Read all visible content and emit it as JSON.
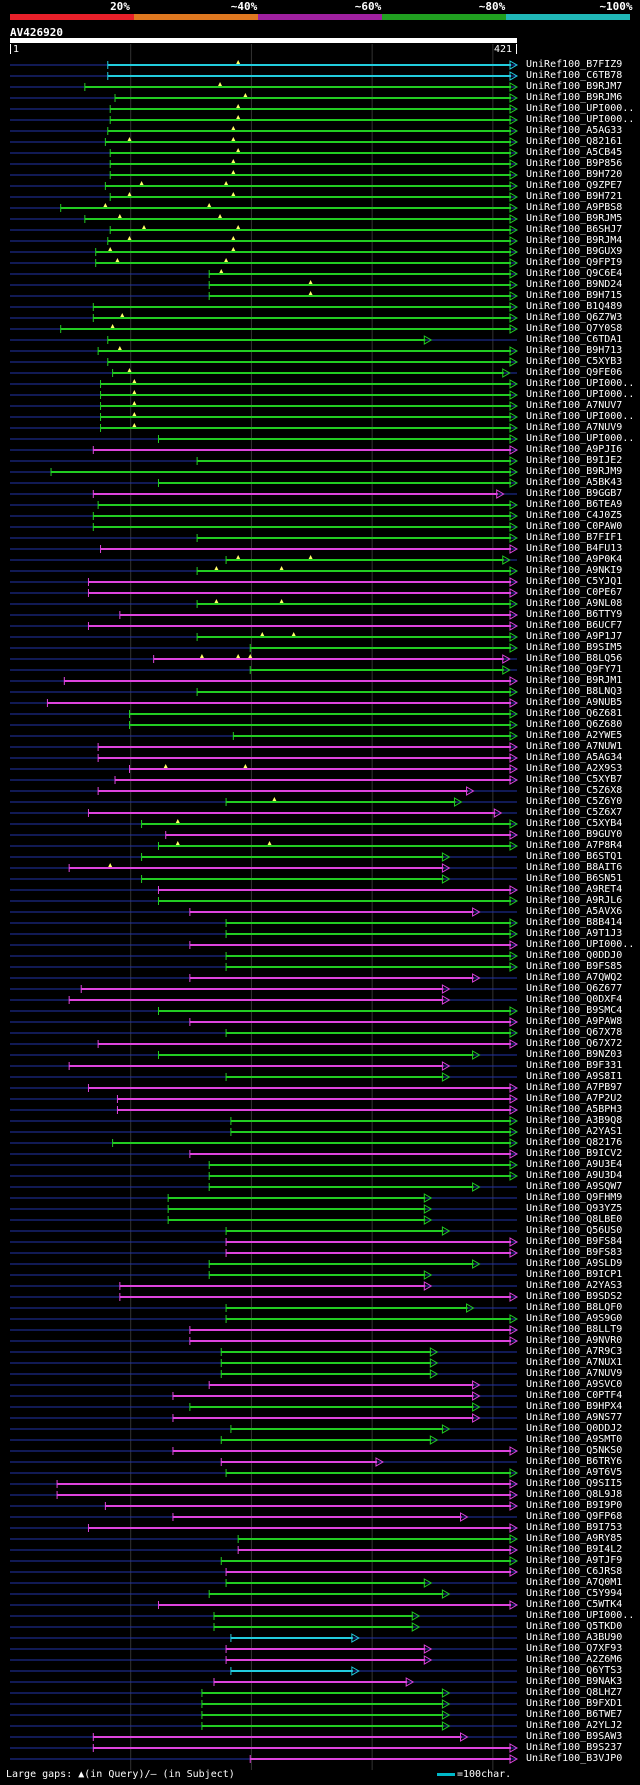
{
  "legend": {
    "labels": [
      "20%",
      "~40%",
      "~60%",
      "~80%",
      "~100%"
    ],
    "colors": [
      "#e8202a",
      "#e07820",
      "#a020a0",
      "#20a020",
      "#20b8b8"
    ]
  },
  "query": {
    "id": "AV426920",
    "start": "1",
    "end": "421",
    "length": 421
  },
  "hits": [
    {
      "id": "UniRef100_B7FIZ9",
      "s": 82,
      "e": 421,
      "c": "cyan",
      "m": [
        190
      ]
    },
    {
      "id": "UniRef100_C6TB78",
      "s": 82,
      "e": 421,
      "c": "cyan",
      "m": []
    },
    {
      "id": "UniRef100_B9RJM7",
      "s": 63,
      "e": 421,
      "c": "green",
      "m": [
        175
      ]
    },
    {
      "id": "UniRef100_B9RJM6",
      "s": 88,
      "e": 421,
      "c": "green",
      "m": [
        196
      ]
    },
    {
      "id": "UniRef100_UPI000..",
      "s": 84,
      "e": 421,
      "c": "green",
      "m": [
        190
      ]
    },
    {
      "id": "UniRef100_UPI000..",
      "s": 84,
      "e": 421,
      "c": "green",
      "m": [
        190
      ]
    },
    {
      "id": "UniRef100_A5AG33",
      "s": 82,
      "e": 421,
      "c": "green",
      "m": [
        186
      ]
    },
    {
      "id": "UniRef100_Q82161",
      "s": 80,
      "e": 421,
      "c": "green",
      "m": [
        100,
        186
      ]
    },
    {
      "id": "UniRef100_A5CB45",
      "s": 84,
      "e": 421,
      "c": "green",
      "m": [
        190
      ]
    },
    {
      "id": "UniRef100_B9P856",
      "s": 84,
      "e": 421,
      "c": "green",
      "m": [
        186
      ]
    },
    {
      "id": "UniRef100_B9H720",
      "s": 84,
      "e": 421,
      "c": "green",
      "m": [
        186
      ]
    },
    {
      "id": "UniRef100_Q9ZPE7",
      "s": 80,
      "e": 421,
      "c": "green",
      "m": [
        110,
        180
      ]
    },
    {
      "id": "UniRef100_B9H721",
      "s": 84,
      "e": 421,
      "c": "green",
      "m": [
        100,
        186
      ]
    },
    {
      "id": "UniRef100_A9PBS8",
      "s": 43,
      "e": 421,
      "c": "green",
      "m": [
        80,
        166
      ]
    },
    {
      "id": "UniRef100_B9RJM5",
      "s": 63,
      "e": 421,
      "c": "green",
      "m": [
        92,
        175
      ]
    },
    {
      "id": "UniRef100_B6SHJ7",
      "s": 84,
      "e": 421,
      "c": "green",
      "m": [
        112,
        190
      ]
    },
    {
      "id": "UniRef100_B9RJM4",
      "s": 82,
      "e": 421,
      "c": "green",
      "m": [
        100,
        186
      ]
    },
    {
      "id": "UniRef100_B9GUX9",
      "s": 72,
      "e": 421,
      "c": "green",
      "m": [
        84,
        186
      ]
    },
    {
      "id": "UniRef100_Q9FPI9",
      "s": 72,
      "e": 421,
      "c": "green",
      "m": [
        90,
        180
      ]
    },
    {
      "id": "UniRef100_Q9C6E4",
      "s": 166,
      "e": 421,
      "c": "green",
      "m": [
        176
      ]
    },
    {
      "id": "UniRef100_B9ND24",
      "s": 166,
      "e": 421,
      "c": "green",
      "m": [
        250
      ]
    },
    {
      "id": "UniRef100_B9H715",
      "s": 166,
      "e": 421,
      "c": "green",
      "m": [
        250
      ]
    },
    {
      "id": "UniRef100_B1Q489",
      "s": 70,
      "e": 421,
      "c": "green",
      "m": []
    },
    {
      "id": "UniRef100_Q6Z7W3",
      "s": 70,
      "e": 421,
      "c": "green",
      "m": [
        94
      ]
    },
    {
      "id": "UniRef100_Q7Y0S8",
      "s": 43,
      "e": 421,
      "c": "green",
      "m": [
        86
      ]
    },
    {
      "id": "UniRef100_C6TDA1",
      "s": 82,
      "e": 350,
      "c": "green",
      "m": []
    },
    {
      "id": "UniRef100_B9H713",
      "s": 74,
      "e": 421,
      "c": "green",
      "m": [
        92
      ]
    },
    {
      "id": "UniRef100_C5XYB3",
      "s": 82,
      "e": 421,
      "c": "green",
      "m": []
    },
    {
      "id": "UniRef100_Q9FE06",
      "s": 86,
      "e": 415,
      "c": "green",
      "m": [
        100
      ]
    },
    {
      "id": "UniRef100_UPI000..",
      "s": 76,
      "e": 421,
      "c": "green",
      "m": [
        104
      ]
    },
    {
      "id": "UniRef100_UPI000..",
      "s": 76,
      "e": 421,
      "c": "green",
      "m": [
        104
      ]
    },
    {
      "id": "UniRef100_A7NUV7",
      "s": 76,
      "e": 421,
      "c": "green",
      "m": [
        104
      ]
    },
    {
      "id": "UniRef100_UPI000..",
      "s": 76,
      "e": 421,
      "c": "green",
      "m": [
        104
      ]
    },
    {
      "id": "UniRef100_A7NUV9",
      "s": 76,
      "e": 421,
      "c": "green",
      "m": [
        104
      ]
    },
    {
      "id": "UniRef100_UPI000..",
      "s": 124,
      "e": 421,
      "c": "green",
      "m": []
    },
    {
      "id": "UniRef100_A9PJI6",
      "s": 70,
      "e": 421,
      "c": "magenta",
      "m": []
    },
    {
      "id": "UniRef100_B9IJE2",
      "s": 156,
      "e": 421,
      "c": "green",
      "m": []
    },
    {
      "id": "UniRef100_B9RJM9",
      "s": 35,
      "e": 421,
      "c": "green",
      "m": []
    },
    {
      "id": "UniRef100_A5BK43",
      "s": 124,
      "e": 421,
      "c": "green",
      "m": []
    },
    {
      "id": "UniRef100_B9GGB7",
      "s": 70,
      "e": 410,
      "c": "magenta",
      "m": []
    },
    {
      "id": "UniRef100_B6TEA9",
      "s": 74,
      "e": 421,
      "c": "green",
      "m": []
    },
    {
      "id": "UniRef100_C4J0Z5",
      "s": 70,
      "e": 421,
      "c": "green",
      "m": []
    },
    {
      "id": "UniRef100_C0PAW0",
      "s": 70,
      "e": 421,
      "c": "green",
      "m": []
    },
    {
      "id": "UniRef100_B7FIF1",
      "s": 156,
      "e": 421,
      "c": "green",
      "m": []
    },
    {
      "id": "UniRef100_B4FU13",
      "s": 76,
      "e": 421,
      "c": "magenta",
      "m": []
    },
    {
      "id": "UniRef100_A9P0K4",
      "s": 180,
      "e": 415,
      "c": "green",
      "m": [
        190,
        250
      ]
    },
    {
      "id": "UniRef100_A9NKI9",
      "s": 156,
      "e": 421,
      "c": "green",
      "m": [
        172,
        226
      ]
    },
    {
      "id": "UniRef100_C5YJQ1",
      "s": 66,
      "e": 421,
      "c": "magenta",
      "m": []
    },
    {
      "id": "UniRef100_C0PE67",
      "s": 66,
      "e": 421,
      "c": "magenta",
      "m": []
    },
    {
      "id": "UniRef100_A9NL08",
      "s": 156,
      "e": 421,
      "c": "green",
      "m": [
        172,
        226
      ]
    },
    {
      "id": "UniRef100_B6TTY9",
      "s": 92,
      "e": 421,
      "c": "magenta",
      "m": []
    },
    {
      "id": "UniRef100_B6UCF7",
      "s": 66,
      "e": 421,
      "c": "magenta",
      "m": []
    },
    {
      "id": "UniRef100_A9P1J7",
      "s": 156,
      "e": 421,
      "c": "green",
      "m": [
        210,
        236
      ]
    },
    {
      "id": "UniRef100_B9SIM5",
      "s": 200,
      "e": 421,
      "c": "green",
      "m": []
    },
    {
      "id": "UniRef100_B8LQ56",
      "s": 120,
      "e": 415,
      "c": "magenta",
      "m": [
        160,
        190,
        200
      ]
    },
    {
      "id": "UniRef100_Q9FY71",
      "s": 200,
      "e": 415,
      "c": "green",
      "m": []
    },
    {
      "id": "UniRef100_B9RJM1",
      "s": 46,
      "e": 421,
      "c": "magenta",
      "m": []
    },
    {
      "id": "UniRef100_B8LNQ3",
      "s": 156,
      "e": 421,
      "c": "green",
      "m": []
    },
    {
      "id": "UniRef100_A9NUB5",
      "s": 32,
      "e": 421,
      "c": "magenta",
      "m": []
    },
    {
      "id": "UniRef100_Q6Z681",
      "s": 100,
      "e": 421,
      "c": "green",
      "m": []
    },
    {
      "id": "UniRef100_Q6Z680",
      "s": 100,
      "e": 421,
      "c": "green",
      "m": []
    },
    {
      "id": "UniRef100_A2YWE5",
      "s": 186,
      "e": 421,
      "c": "green",
      "m": []
    },
    {
      "id": "UniRef100_A7NUW1",
      "s": 74,
      "e": 421,
      "c": "magenta",
      "m": []
    },
    {
      "id": "UniRef100_A5AG34",
      "s": 74,
      "e": 421,
      "c": "magenta",
      "m": []
    },
    {
      "id": "UniRef100_A2X9S3",
      "s": 100,
      "e": 421,
      "c": "magenta",
      "m": [
        130,
        196
      ]
    },
    {
      "id": "UniRef100_C5XYB7",
      "s": 88,
      "e": 421,
      "c": "magenta",
      "m": []
    },
    {
      "id": "UniRef100_C5Z6X8",
      "s": 74,
      "e": 385,
      "c": "magenta",
      "m": []
    },
    {
      "id": "UniRef100_C5Z6Y0",
      "s": 180,
      "e": 375,
      "c": "green",
      "m": [
        220
      ]
    },
    {
      "id": "UniRef100_C5Z6X7",
      "s": 66,
      "e": 408,
      "c": "magenta",
      "m": []
    },
    {
      "id": "UniRef100_C5XYB4",
      "s": 110,
      "e": 421,
      "c": "green",
      "m": [
        140
      ]
    },
    {
      "id": "UniRef100_B9GUY0",
      "s": 130,
      "e": 421,
      "c": "magenta",
      "m": []
    },
    {
      "id": "UniRef100_A7P8R4",
      "s": 124,
      "e": 421,
      "c": "green",
      "m": [
        140,
        216
      ]
    },
    {
      "id": "UniRef100_B6STQ1",
      "s": 110,
      "e": 365,
      "c": "green",
      "m": []
    },
    {
      "id": "UniRef100_B8AIT6",
      "s": 50,
      "e": 365,
      "c": "magenta",
      "m": [
        84
      ]
    },
    {
      "id": "UniRef100_B6SN51",
      "s": 110,
      "e": 365,
      "c": "green",
      "m": []
    },
    {
      "id": "UniRef100_A9RET4",
      "s": 124,
      "e": 421,
      "c": "magenta",
      "m": []
    },
    {
      "id": "UniRef100_A9RJL6",
      "s": 124,
      "e": 421,
      "c": "green",
      "m": []
    },
    {
      "id": "UniRef100_A5AVX6",
      "s": 150,
      "e": 390,
      "c": "magenta",
      "m": []
    },
    {
      "id": "UniRef100_B8B414",
      "s": 180,
      "e": 421,
      "c": "green",
      "m": []
    },
    {
      "id": "UniRef100_A9T1J3",
      "s": 180,
      "e": 421,
      "c": "green",
      "m": []
    },
    {
      "id": "UniRef100_UPI000..",
      "s": 150,
      "e": 421,
      "c": "magenta",
      "m": []
    },
    {
      "id": "UniRef100_Q0DDJ0",
      "s": 180,
      "e": 421,
      "c": "green",
      "m": []
    },
    {
      "id": "UniRef100_B9FS85",
      "s": 180,
      "e": 421,
      "c": "green",
      "m": []
    },
    {
      "id": "UniRef100_A7QWQ2",
      "s": 150,
      "e": 390,
      "c": "magenta",
      "m": []
    },
    {
      "id": "UniRef100_Q6Z677",
      "s": 60,
      "e": 365,
      "c": "magenta",
      "m": []
    },
    {
      "id": "UniRef100_Q0DXF4",
      "s": 50,
      "e": 365,
      "c": "magenta",
      "m": []
    },
    {
      "id": "UniRef100_B9SMC4",
      "s": 124,
      "e": 421,
      "c": "green",
      "m": []
    },
    {
      "id": "UniRef100_A9PAW8",
      "s": 150,
      "e": 421,
      "c": "magenta",
      "m": []
    },
    {
      "id": "UniRef100_Q67X78",
      "s": 180,
      "e": 421,
      "c": "green",
      "m": []
    },
    {
      "id": "UniRef100_Q67X72",
      "s": 74,
      "e": 421,
      "c": "magenta",
      "m": []
    },
    {
      "id": "UniRef100_B9NZ03",
      "s": 124,
      "e": 390,
      "c": "green",
      "m": []
    },
    {
      "id": "UniRef100_B9F331",
      "s": 50,
      "e": 365,
      "c": "magenta",
      "m": []
    },
    {
      "id": "UniRef100_A9S8I1",
      "s": 180,
      "e": 365,
      "c": "green",
      "m": []
    },
    {
      "id": "UniRef100_A7PB97",
      "s": 66,
      "e": 421,
      "c": "magenta",
      "m": []
    },
    {
      "id": "UniRef100_A7P2U2",
      "s": 90,
      "e": 421,
      "c": "magenta",
      "m": []
    },
    {
      "id": "UniRef100_A5BPH3",
      "s": 90,
      "e": 421,
      "c": "magenta",
      "m": []
    },
    {
      "id": "UniRef100_A3B9Q8",
      "s": 184,
      "e": 421,
      "c": "green",
      "m": []
    },
    {
      "id": "UniRef100_A2YAS1",
      "s": 184,
      "e": 421,
      "c": "green",
      "m": []
    },
    {
      "id": "UniRef100_Q82176",
      "s": 86,
      "e": 421,
      "c": "green",
      "m": []
    },
    {
      "id": "UniRef100_B9ICV2",
      "s": 150,
      "e": 421,
      "c": "magenta",
      "m": []
    },
    {
      "id": "UniRef100_A9U3E4",
      "s": 166,
      "e": 421,
      "c": "green",
      "m": []
    },
    {
      "id": "UniRef100_A9U3D4",
      "s": 166,
      "e": 421,
      "c": "green",
      "m": []
    },
    {
      "id": "UniRef100_A9SQW7",
      "s": 166,
      "e": 390,
      "c": "green",
      "m": []
    },
    {
      "id": "UniRef100_Q9FHM9",
      "s": 132,
      "e": 350,
      "c": "green",
      "m": []
    },
    {
      "id": "UniRef100_Q93YZ5",
      "s": 132,
      "e": 350,
      "c": "green",
      "m": []
    },
    {
      "id": "UniRef100_Q8LBE0",
      "s": 132,
      "e": 350,
      "c": "green",
      "m": []
    },
    {
      "id": "UniRef100_Q56US0",
      "s": 180,
      "e": 365,
      "c": "green",
      "m": []
    },
    {
      "id": "UniRef100_B9FS84",
      "s": 180,
      "e": 421,
      "c": "magenta",
      "m": []
    },
    {
      "id": "UniRef100_B9FS83",
      "s": 180,
      "e": 421,
      "c": "magenta",
      "m": []
    },
    {
      "id": "UniRef100_A9SLD9",
      "s": 166,
      "e": 390,
      "c": "green",
      "m": []
    },
    {
      "id": "UniRef100_B9ICP1",
      "s": 166,
      "e": 350,
      "c": "green",
      "m": []
    },
    {
      "id": "UniRef100_A2YAS3",
      "s": 92,
      "e": 350,
      "c": "magenta",
      "m": []
    },
    {
      "id": "UniRef100_B9SDS2",
      "s": 92,
      "e": 421,
      "c": "magenta",
      "m": []
    },
    {
      "id": "UniRef100_B8LQF0",
      "s": 180,
      "e": 385,
      "c": "green",
      "m": []
    },
    {
      "id": "UniRef100_A9S9G0",
      "s": 180,
      "e": 421,
      "c": "green",
      "m": []
    },
    {
      "id": "UniRef100_B8LLT9",
      "s": 150,
      "e": 421,
      "c": "magenta",
      "m": []
    },
    {
      "id": "UniRef100_A9NVR0",
      "s": 150,
      "e": 421,
      "c": "magenta",
      "m": []
    },
    {
      "id": "UniRef100_A7R9C3",
      "s": 176,
      "e": 355,
      "c": "green",
      "m": []
    },
    {
      "id": "UniRef100_A7NUX1",
      "s": 176,
      "e": 355,
      "c": "green",
      "m": []
    },
    {
      "id": "UniRef100_A7NUV9",
      "s": 176,
      "e": 355,
      "c": "green",
      "m": []
    },
    {
      "id": "UniRef100_A9SVC0",
      "s": 166,
      "e": 390,
      "c": "magenta",
      "m": []
    },
    {
      "id": "UniRef100_C0PTF4",
      "s": 136,
      "e": 390,
      "c": "magenta",
      "m": []
    },
    {
      "id": "UniRef100_B9HPX4",
      "s": 150,
      "e": 390,
      "c": "green",
      "m": []
    },
    {
      "id": "UniRef100_A9NS77",
      "s": 136,
      "e": 390,
      "c": "magenta",
      "m": []
    },
    {
      "id": "UniRef100_Q0DDJ2",
      "s": 184,
      "e": 365,
      "c": "green",
      "m": []
    },
    {
      "id": "UniRef100_A9SMT0",
      "s": 176,
      "e": 355,
      "c": "green",
      "m": []
    },
    {
      "id": "UniRef100_Q5NKS0",
      "s": 136,
      "e": 421,
      "c": "magenta",
      "m": []
    },
    {
      "id": "UniRef100_B6TRY6",
      "s": 176,
      "e": 310,
      "c": "magenta",
      "m": []
    },
    {
      "id": "UniRef100_A9T6V5",
      "s": 180,
      "e": 421,
      "c": "green",
      "m": []
    },
    {
      "id": "UniRef100_Q9SII5",
      "s": 40,
      "e": 421,
      "c": "magenta",
      "m": []
    },
    {
      "id": "UniRef100_Q8L9J8",
      "s": 40,
      "e": 421,
      "c": "magenta",
      "m": []
    },
    {
      "id": "UniRef100_B9I9P0",
      "s": 80,
      "e": 421,
      "c": "magenta",
      "m": []
    },
    {
      "id": "UniRef100_Q9FP68",
      "s": 136,
      "e": 380,
      "c": "magenta",
      "m": []
    },
    {
      "id": "UniRef100_B9I753",
      "s": 66,
      "e": 421,
      "c": "magenta",
      "m": []
    },
    {
      "id": "UniRef100_A9RY85",
      "s": 190,
      "e": 421,
      "c": "green",
      "m": []
    },
    {
      "id": "UniRef100_B9I4L2",
      "s": 190,
      "e": 421,
      "c": "magenta",
      "m": []
    },
    {
      "id": "UniRef100_A9TJF9",
      "s": 176,
      "e": 421,
      "c": "green",
      "m": []
    },
    {
      "id": "UniRef100_C6JRS8",
      "s": 180,
      "e": 421,
      "c": "magenta",
      "m": []
    },
    {
      "id": "UniRef100_A7Q0M1",
      "s": 180,
      "e": 350,
      "c": "green",
      "m": []
    },
    {
      "id": "UniRef100_C5Y994",
      "s": 166,
      "e": 365,
      "c": "green",
      "m": []
    },
    {
      "id": "UniRef100_C5WTK4",
      "s": 124,
      "e": 421,
      "c": "magenta",
      "m": []
    },
    {
      "id": "UniRef100_UPI000..",
      "s": 170,
      "e": 340,
      "c": "green",
      "m": []
    },
    {
      "id": "UniRef100_Q5TKD0",
      "s": 170,
      "e": 340,
      "c": "green",
      "m": []
    },
    {
      "id": "UniRef100_A3BU90",
      "s": 184,
      "e": 290,
      "c": "cyan",
      "m": []
    },
    {
      "id": "UniRef100_Q7XF93",
      "s": 180,
      "e": 350,
      "c": "magenta",
      "m": []
    },
    {
      "id": "UniRef100_A2Z6M6",
      "s": 180,
      "e": 350,
      "c": "magenta",
      "m": []
    },
    {
      "id": "UniRef100_Q6YTS3",
      "s": 184,
      "e": 290,
      "c": "cyan",
      "m": []
    },
    {
      "id": "UniRef100_B9NAK3",
      "s": 170,
      "e": 335,
      "c": "magenta",
      "m": []
    },
    {
      "id": "UniRef100_Q8LHZ7",
      "s": 160,
      "e": 365,
      "c": "green",
      "m": []
    },
    {
      "id": "UniRef100_B9FXD1",
      "s": 160,
      "e": 365,
      "c": "green",
      "m": []
    },
    {
      "id": "UniRef100_B6TWE7",
      "s": 160,
      "e": 365,
      "c": "green",
      "m": []
    },
    {
      "id": "UniRef100_A2YLJ2",
      "s": 160,
      "e": 365,
      "c": "green",
      "m": []
    },
    {
      "id": "UniRef100_B9SAW3",
      "s": 70,
      "e": 380,
      "c": "magenta",
      "m": []
    },
    {
      "id": "UniRef100_B9S237",
      "s": 70,
      "e": 421,
      "c": "magenta",
      "m": []
    },
    {
      "id": "UniRef100_B3VJP0",
      "s": 200,
      "e": 421,
      "c": "magenta",
      "m": []
    }
  ],
  "footer": {
    "text": "Large gaps: ▲(in Query)/– (in Subject)",
    "scale_text": "=100char."
  },
  "colors": {
    "cyan": "#22ccdd",
    "green": "#22cc22",
    "magenta": "#dd44dd",
    "gap": "#2233aa"
  }
}
